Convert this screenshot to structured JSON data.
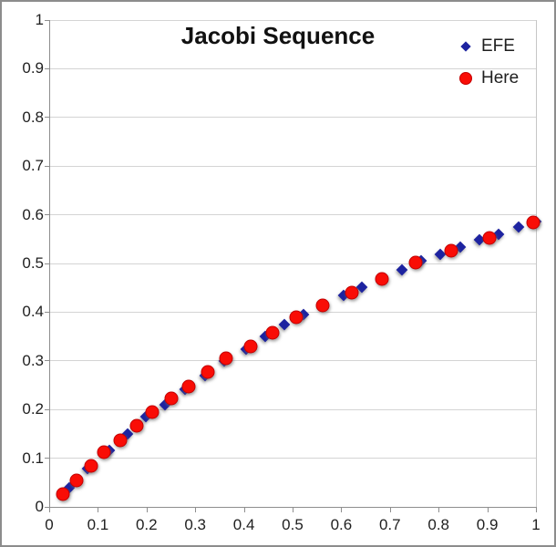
{
  "chart_data": {
    "type": "scatter",
    "title": "Jacobi Sequence",
    "xlabel": "",
    "ylabel": "",
    "grid": "horizontal-only",
    "legend_position": "top-right-inside",
    "x_axis": {
      "min": 0,
      "max": 1,
      "tick_labels": [
        "0",
        "0.1",
        "0.2",
        "0.3",
        "0.4",
        "0.5",
        "0.6",
        "0.7",
        "0.8",
        "0.9",
        "1"
      ]
    },
    "y_axis": {
      "min": 0,
      "max": 1,
      "tick_labels": [
        "0",
        "0.1",
        "0.2",
        "0.3",
        "0.4",
        "0.5",
        "0.6",
        "0.7",
        "0.8",
        "0.9",
        "1"
      ]
    },
    "colors": {
      "efe_marker": "#1d23a0",
      "here_marker_fill": "#f90d06",
      "here_marker_border": "#c40000",
      "gridline": "#d4d4d4",
      "axis": "#8e8e8e",
      "frame_border": "#8c8c8c",
      "text": "#1f1f1f"
    },
    "series": [
      {
        "name": "EFE",
        "marker": "diamond",
        "color": "#1d23a0",
        "points": [
          [
            0.041,
            0.04
          ],
          [
            0.079,
            0.078
          ],
          [
            0.124,
            0.117
          ],
          [
            0.161,
            0.15
          ],
          [
            0.199,
            0.185
          ],
          [
            0.238,
            0.21
          ],
          [
            0.279,
            0.241
          ],
          [
            0.32,
            0.27
          ],
          [
            0.359,
            0.299
          ],
          [
            0.404,
            0.324
          ],
          [
            0.443,
            0.35
          ],
          [
            0.483,
            0.374
          ],
          [
            0.523,
            0.396
          ],
          [
            0.605,
            0.435
          ],
          [
            0.643,
            0.452
          ],
          [
            0.724,
            0.487
          ],
          [
            0.764,
            0.505
          ],
          [
            0.803,
            0.519
          ],
          [
            0.845,
            0.534
          ],
          [
            0.884,
            0.549
          ],
          [
            0.924,
            0.56
          ],
          [
            0.964,
            0.574
          ],
          [
            1.0,
            0.586
          ]
        ]
      },
      {
        "name": "Here",
        "marker": "circle",
        "color": "#f90d06",
        "border_color": "#c40000",
        "points": [
          [
            0.028,
            0.026
          ],
          [
            0.056,
            0.054
          ],
          [
            0.087,
            0.084
          ],
          [
            0.112,
            0.112
          ],
          [
            0.147,
            0.137
          ],
          [
            0.18,
            0.167
          ],
          [
            0.212,
            0.194
          ],
          [
            0.25,
            0.222
          ],
          [
            0.286,
            0.248
          ],
          [
            0.326,
            0.278
          ],
          [
            0.363,
            0.305
          ],
          [
            0.413,
            0.33
          ],
          [
            0.458,
            0.358
          ],
          [
            0.508,
            0.389
          ],
          [
            0.562,
            0.414
          ],
          [
            0.622,
            0.441
          ],
          [
            0.683,
            0.469
          ],
          [
            0.752,
            0.501
          ],
          [
            0.825,
            0.526
          ],
          [
            0.905,
            0.553
          ],
          [
            0.995,
            0.585
          ]
        ]
      }
    ]
  }
}
